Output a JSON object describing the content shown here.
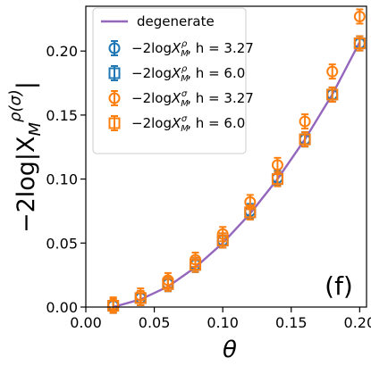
{
  "chart_data": {
    "type": "scatter",
    "panel_label": "(f)",
    "xlabel": "θ",
    "ylabel_main": "−2log|X",
    "ylabel_sub": "M",
    "ylabel_sup": "ρ(σ)",
    "ylabel_end": "|",
    "xlim": [
      0.0,
      0.205
    ],
    "ylim": [
      0.0,
      0.235
    ],
    "x_ticks": [
      0.0,
      0.05,
      0.1,
      0.15,
      0.2
    ],
    "x_tick_labels": [
      "0.00",
      "0.05",
      "0.10",
      "0.15",
      "0.20"
    ],
    "y_ticks": [
      0.0,
      0.05,
      0.1,
      0.15,
      0.2
    ],
    "y_tick_labels": [
      "0.00",
      "0.05",
      "0.10",
      "0.15",
      "0.20"
    ],
    "grid": false,
    "legend_placement": "top-left",
    "x": [
      0.02,
      0.04,
      0.06,
      0.08,
      0.1,
      0.12,
      0.14,
      0.16,
      0.18,
      0.2
    ],
    "line": {
      "name": "degenerate",
      "color": "#9467bd",
      "x": [
        0.02,
        0.04,
        0.06,
        0.08,
        0.1,
        0.12,
        0.14,
        0.16,
        0.18,
        0.2
      ],
      "values": [
        0.0,
        0.006,
        0.016,
        0.031,
        0.05,
        0.073,
        0.1,
        0.131,
        0.166,
        0.207
      ]
    },
    "series": [
      {
        "name_main": "−2log",
        "name_X": "X",
        "name_sub": "M",
        "name_sup": "ρ",
        "name_tail": ", h = 3.27",
        "marker": "circle",
        "color": "#1f77b4",
        "values": [
          0.001,
          0.007,
          0.018,
          0.033,
          0.052,
          0.075,
          0.101,
          0.131,
          0.166,
          0.206
        ]
      },
      {
        "name_main": "−2log",
        "name_X": "X",
        "name_sub": "M",
        "name_sup": "ρ",
        "name_tail": ", h = 6.0",
        "marker": "square",
        "color": "#1f77b4",
        "values": [
          0.001,
          0.007,
          0.018,
          0.033,
          0.052,
          0.074,
          0.1,
          0.131,
          0.166,
          0.206
        ]
      },
      {
        "name_main": "−2log",
        "name_X": "X",
        "name_sub": "M",
        "name_sup": "σ",
        "name_tail": ", h = 3.27",
        "marker": "circle",
        "color": "#ff7f0e",
        "values": [
          0.002,
          0.009,
          0.021,
          0.037,
          0.057,
          0.082,
          0.111,
          0.145,
          0.184,
          0.227
        ]
      },
      {
        "name_main": "−2log",
        "name_X": "X",
        "name_sub": "M",
        "name_sup": "σ",
        "name_tail": ", h = 6.0",
        "marker": "square",
        "color": "#ff7f0e",
        "values": [
          0.001,
          0.007,
          0.018,
          0.033,
          0.052,
          0.074,
          0.1,
          0.131,
          0.166,
          0.206
        ]
      }
    ]
  }
}
